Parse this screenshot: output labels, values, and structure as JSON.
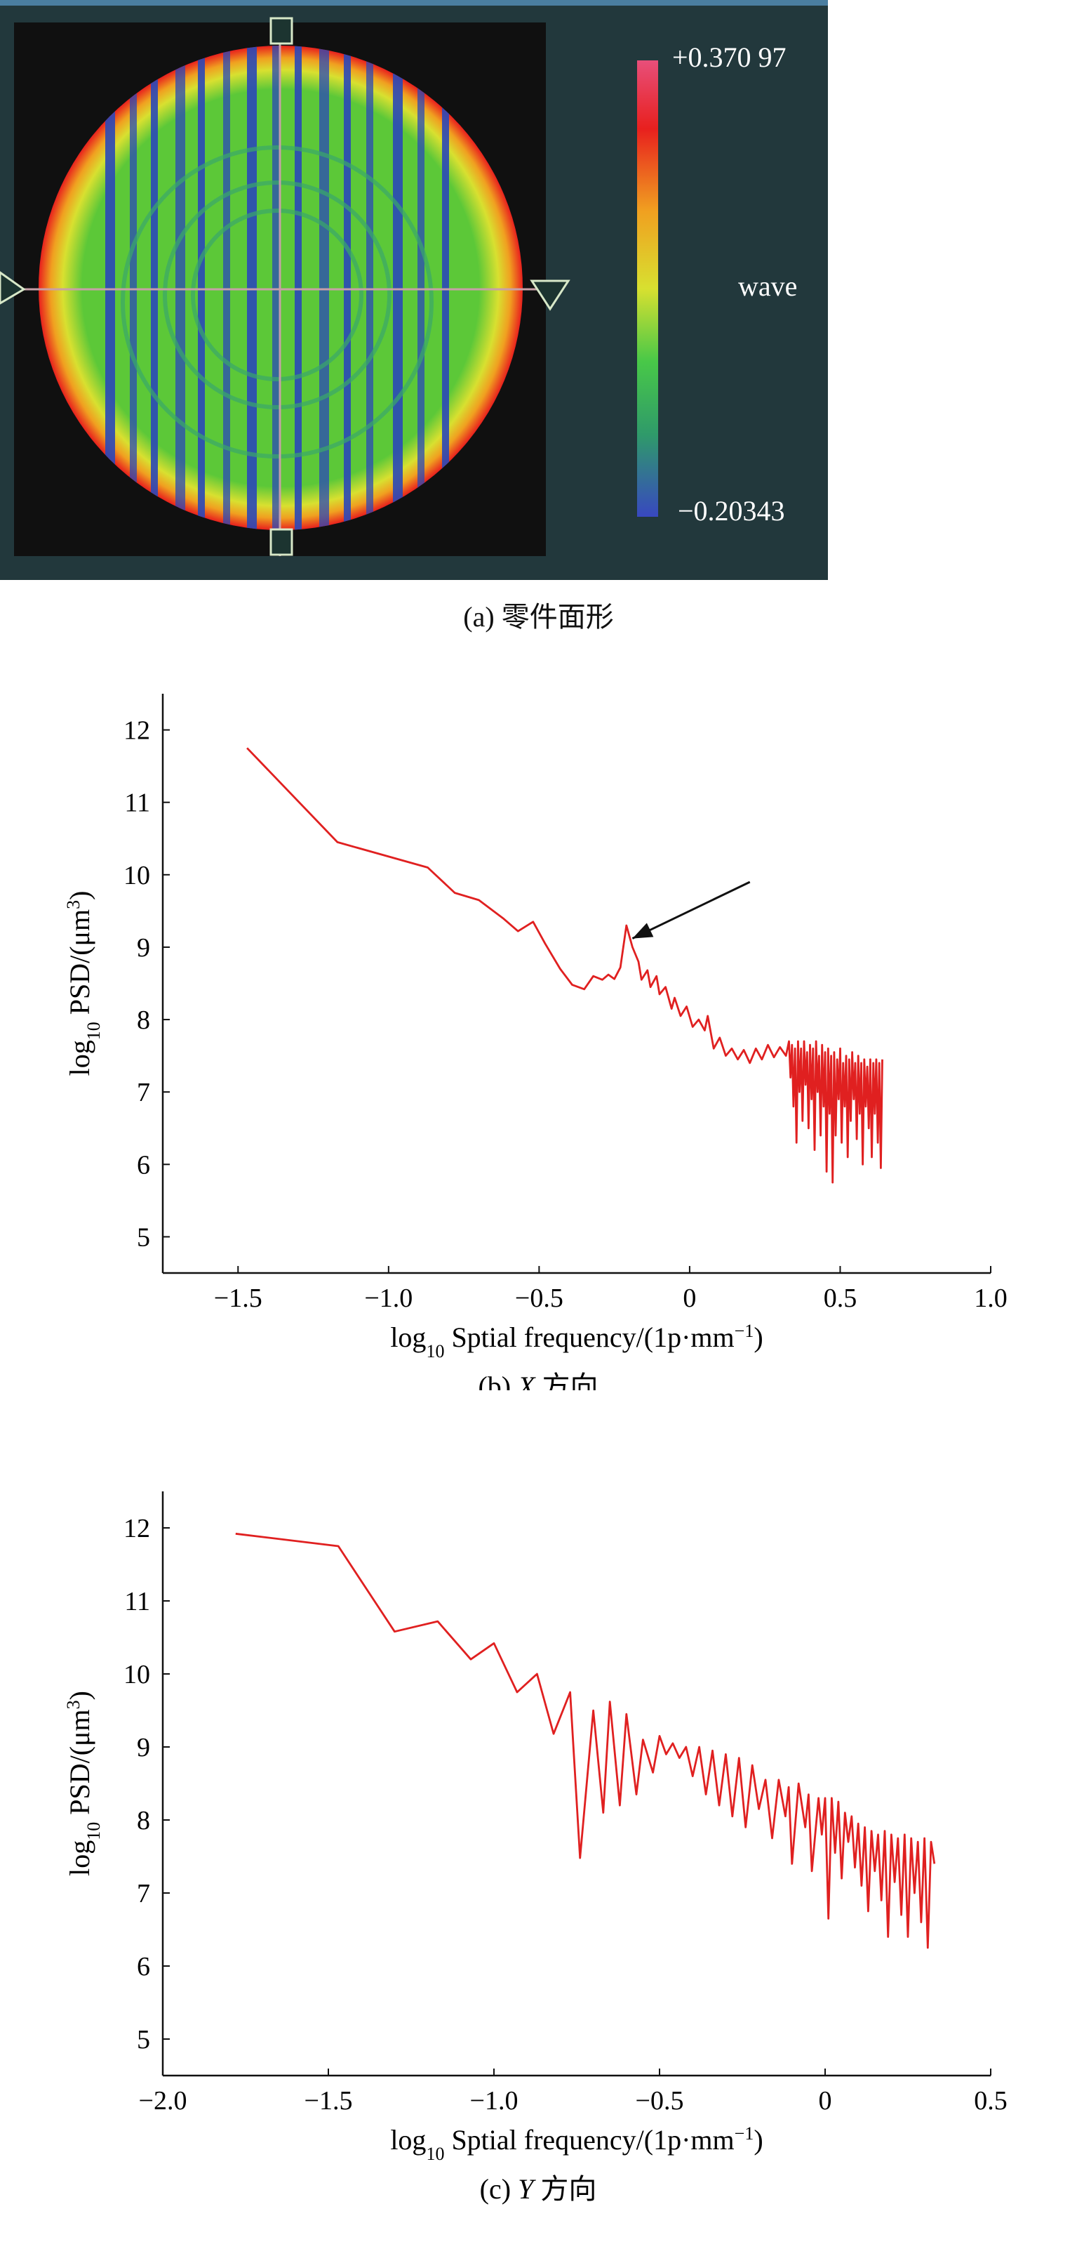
{
  "panel_a": {
    "caption": "(a) 零件面形",
    "colorbar": {
      "max_label": "+0.370 97",
      "unit_label": "wave",
      "min_label": "−0.20343",
      "stops": [
        "#e84f7a",
        "#e8201e",
        "#f0a020",
        "#d8e030",
        "#48c848",
        "#2f9a6a",
        "#3848c0"
      ]
    },
    "colors": {
      "background": "#22383c",
      "frame": "#101010",
      "edge": "#e8201e",
      "field": "#5cc838",
      "stripe": "#2a48b8"
    }
  },
  "chart_data": [
    {
      "type": "line",
      "caption_prefix": "(b) ",
      "caption_axis": "X",
      "caption_suffix": " 方向",
      "xlabel_main": "log",
      "xlabel_sub": "10",
      "xlabel_rest": " Sptial frequency/(1p·mm",
      "xlabel_sup": "−1",
      "xlabel_end": ")",
      "ylabel_main": "log",
      "ylabel_sub": "10",
      "ylabel_rest": " PSD/(μm",
      "ylabel_sup": "3",
      "ylabel_end": ")",
      "xlim": [
        -1.75,
        1.0
      ],
      "ylim": [
        4.5,
        12.5
      ],
      "xticks": [
        -1.5,
        -1.0,
        -0.5,
        0,
        0.5,
        1.0
      ],
      "xtick_labels": [
        "−1.5",
        "−1.0",
        "−0.5",
        "0",
        "0.5",
        "1.0"
      ],
      "yticks": [
        5,
        6,
        7,
        8,
        9,
        10,
        11,
        12
      ],
      "ytick_labels": [
        "5",
        "6",
        "7",
        "8",
        "9",
        "10",
        "11",
        "12"
      ],
      "color": "#e02020",
      "annotation": {
        "type": "arrow",
        "from": [
          0.2,
          9.9
        ],
        "to": [
          -0.19,
          9.12
        ]
      },
      "points": [
        [
          -1.47,
          11.75
        ],
        [
          -1.17,
          10.45
        ],
        [
          -0.87,
          10.1
        ],
        [
          -0.78,
          9.75
        ],
        [
          -0.7,
          9.65
        ],
        [
          -0.62,
          9.4
        ],
        [
          -0.57,
          9.22
        ],
        [
          -0.52,
          9.35
        ],
        [
          -0.48,
          9.05
        ],
        [
          -0.43,
          8.7
        ],
        [
          -0.39,
          8.48
        ],
        [
          -0.35,
          8.42
        ],
        [
          -0.32,
          8.6
        ],
        [
          -0.29,
          8.55
        ],
        [
          -0.27,
          8.62
        ],
        [
          -0.25,
          8.56
        ],
        [
          -0.23,
          8.72
        ],
        [
          -0.21,
          9.3
        ],
        [
          -0.19,
          9.0
        ],
        [
          -0.17,
          8.8
        ],
        [
          -0.16,
          8.55
        ],
        [
          -0.14,
          8.68
        ],
        [
          -0.13,
          8.45
        ],
        [
          -0.11,
          8.6
        ],
        [
          -0.1,
          8.35
        ],
        [
          -0.08,
          8.45
        ],
        [
          -0.06,
          8.15
        ],
        [
          -0.05,
          8.3
        ],
        [
          -0.03,
          8.05
        ],
        [
          -0.01,
          8.18
        ],
        [
          0.01,
          7.9
        ],
        [
          0.03,
          8.0
        ],
        [
          0.05,
          7.85
        ],
        [
          0.06,
          8.05
        ],
        [
          0.08,
          7.6
        ],
        [
          0.1,
          7.75
        ],
        [
          0.12,
          7.5
        ],
        [
          0.14,
          7.6
        ],
        [
          0.16,
          7.45
        ],
        [
          0.18,
          7.58
        ],
        [
          0.2,
          7.4
        ],
        [
          0.22,
          7.6
        ],
        [
          0.24,
          7.45
        ],
        [
          0.26,
          7.65
        ],
        [
          0.28,
          7.48
        ],
        [
          0.3,
          7.62
        ],
        [
          0.32,
          7.5
        ],
        [
          0.33,
          7.7
        ],
        [
          0.335,
          7.2
        ],
        [
          0.34,
          7.65
        ],
        [
          0.345,
          6.8
        ],
        [
          0.35,
          7.6
        ],
        [
          0.355,
          6.3
        ],
        [
          0.36,
          7.7
        ],
        [
          0.365,
          7.0
        ],
        [
          0.37,
          7.6
        ],
        [
          0.375,
          6.6
        ],
        [
          0.38,
          7.7
        ],
        [
          0.385,
          7.1
        ],
        [
          0.39,
          7.55
        ],
        [
          0.395,
          6.5
        ],
        [
          0.4,
          7.65
        ],
        [
          0.405,
          6.9
        ],
        [
          0.41,
          7.6
        ],
        [
          0.415,
          6.2
        ],
        [
          0.42,
          7.7
        ],
        [
          0.425,
          7.0
        ],
        [
          0.43,
          7.5
        ],
        [
          0.435,
          6.4
        ],
        [
          0.44,
          7.65
        ],
        [
          0.445,
          6.8
        ],
        [
          0.45,
          7.55
        ],
        [
          0.455,
          5.9
        ],
        [
          0.46,
          7.6
        ],
        [
          0.465,
          6.7
        ],
        [
          0.47,
          7.5
        ],
        [
          0.475,
          5.75
        ],
        [
          0.48,
          7.55
        ],
        [
          0.485,
          6.4
        ],
        [
          0.49,
          7.45
        ],
        [
          0.495,
          6.9
        ],
        [
          0.5,
          7.6
        ],
        [
          0.505,
          6.3
        ],
        [
          0.51,
          7.4
        ],
        [
          0.515,
          6.8
        ],
        [
          0.52,
          7.5
        ],
        [
          0.525,
          6.1
        ],
        [
          0.53,
          7.45
        ],
        [
          0.535,
          6.6
        ],
        [
          0.54,
          7.55
        ],
        [
          0.545,
          6.9
        ],
        [
          0.55,
          7.4
        ],
        [
          0.555,
          6.35
        ],
        [
          0.56,
          7.5
        ],
        [
          0.565,
          6.7
        ],
        [
          0.57,
          7.4
        ],
        [
          0.575,
          6.0
        ],
        [
          0.58,
          7.45
        ],
        [
          0.585,
          6.8
        ],
        [
          0.59,
          7.35
        ],
        [
          0.595,
          6.5
        ],
        [
          0.6,
          7.45
        ],
        [
          0.605,
          6.1
        ],
        [
          0.61,
          7.4
        ],
        [
          0.615,
          6.7
        ],
        [
          0.62,
          7.45
        ],
        [
          0.625,
          6.3
        ],
        [
          0.63,
          7.4
        ],
        [
          0.635,
          5.95
        ],
        [
          0.64,
          7.45
        ]
      ]
    },
    {
      "type": "line",
      "caption_prefix": "(c) ",
      "caption_axis": "Y",
      "caption_suffix": " 方向",
      "xlabel_main": "log",
      "xlabel_sub": "10",
      "xlabel_rest": " Sptial frequency/(1p·mm",
      "xlabel_sup": "−1",
      "xlabel_end": ")",
      "ylabel_main": "log",
      "ylabel_sub": "10",
      "ylabel_rest": " PSD/(μm",
      "ylabel_sup": "3",
      "ylabel_end": ")",
      "xlim": [
        -2.0,
        0.5
      ],
      "ylim": [
        4.5,
        12.5
      ],
      "xticks": [
        -2.0,
        -1.5,
        -1.0,
        -0.5,
        0,
        0.5
      ],
      "xtick_labels": [
        "−2.0",
        "−1.5",
        "−1.0",
        "−0.5",
        "0",
        "0.5"
      ],
      "yticks": [
        5,
        6,
        7,
        8,
        9,
        10,
        11,
        12
      ],
      "ytick_labels": [
        "5",
        "6",
        "7",
        "8",
        "9",
        "10",
        "11",
        "12"
      ],
      "color": "#e02020",
      "points": [
        [
          -1.78,
          11.92
        ],
        [
          -1.47,
          11.75
        ],
        [
          -1.3,
          10.58
        ],
        [
          -1.17,
          10.72
        ],
        [
          -1.07,
          10.2
        ],
        [
          -1.0,
          10.42
        ],
        [
          -0.93,
          9.75
        ],
        [
          -0.87,
          10.0
        ],
        [
          -0.82,
          9.18
        ],
        [
          -0.77,
          9.75
        ],
        [
          -0.74,
          7.48
        ],
        [
          -0.7,
          9.5
        ],
        [
          -0.67,
          8.1
        ],
        [
          -0.65,
          9.62
        ],
        [
          -0.62,
          8.2
        ],
        [
          -0.6,
          9.45
        ],
        [
          -0.57,
          8.35
        ],
        [
          -0.55,
          9.1
        ],
        [
          -0.52,
          8.65
        ],
        [
          -0.5,
          9.15
        ],
        [
          -0.48,
          8.9
        ],
        [
          -0.46,
          9.05
        ],
        [
          -0.44,
          8.85
        ],
        [
          -0.42,
          9.0
        ],
        [
          -0.4,
          8.6
        ],
        [
          -0.38,
          9.0
        ],
        [
          -0.36,
          8.35
        ],
        [
          -0.34,
          8.95
        ],
        [
          -0.32,
          8.2
        ],
        [
          -0.3,
          8.9
        ],
        [
          -0.28,
          8.05
        ],
        [
          -0.26,
          8.85
        ],
        [
          -0.24,
          7.9
        ],
        [
          -0.22,
          8.75
        ],
        [
          -0.2,
          8.15
        ],
        [
          -0.18,
          8.55
        ],
        [
          -0.16,
          7.75
        ],
        [
          -0.14,
          8.55
        ],
        [
          -0.12,
          8.05
        ],
        [
          -0.11,
          8.45
        ],
        [
          -0.1,
          7.4
        ],
        [
          -0.08,
          8.5
        ],
        [
          -0.06,
          7.9
        ],
        [
          -0.05,
          8.35
        ],
        [
          -0.04,
          7.3
        ],
        [
          -0.02,
          8.3
        ],
        [
          -0.01,
          7.8
        ],
        [
          0.0,
          8.3
        ],
        [
          0.01,
          6.65
        ],
        [
          0.02,
          8.3
        ],
        [
          0.03,
          7.55
        ],
        [
          0.04,
          8.25
        ],
        [
          0.05,
          7.2
        ],
        [
          0.06,
          8.1
        ],
        [
          0.07,
          7.7
        ],
        [
          0.08,
          8.05
        ],
        [
          0.09,
          7.35
        ],
        [
          0.1,
          7.95
        ],
        [
          0.11,
          7.1
        ],
        [
          0.12,
          7.9
        ],
        [
          0.13,
          6.75
        ],
        [
          0.14,
          7.85
        ],
        [
          0.15,
          7.3
        ],
        [
          0.16,
          7.8
        ],
        [
          0.17,
          6.9
        ],
        [
          0.18,
          7.85
        ],
        [
          0.19,
          6.4
        ],
        [
          0.2,
          7.8
        ],
        [
          0.21,
          7.15
        ],
        [
          0.22,
          7.75
        ],
        [
          0.23,
          6.7
        ],
        [
          0.24,
          7.8
        ],
        [
          0.25,
          6.4
        ],
        [
          0.26,
          7.75
        ],
        [
          0.27,
          7.0
        ],
        [
          0.28,
          7.7
        ],
        [
          0.29,
          6.6
        ],
        [
          0.3,
          7.75
        ],
        [
          0.31,
          6.25
        ],
        [
          0.32,
          7.7
        ],
        [
          0.33,
          7.4
        ]
      ]
    }
  ]
}
